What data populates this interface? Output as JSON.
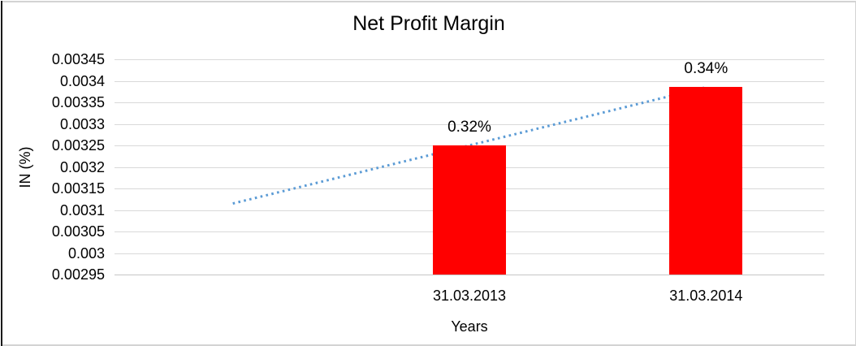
{
  "window": {
    "background": "#FFFFFF",
    "border_color": "#D3D3D3",
    "left_edge_color": "#1A1A1A"
  },
  "chart_data": {
    "type": "bar",
    "title": "Net Profit Margin",
    "categories": [
      "31.03.2013",
      "31.03.2014"
    ],
    "values": [
      0.00325,
      0.003385
    ],
    "data_labels": [
      "0.32%",
      "0.34%"
    ],
    "xlabel": "Years",
    "ylabel": "IN (%)",
    "ylim": [
      0.00295,
      0.00345
    ],
    "ytick_step": 5e-05,
    "yticks": [
      "0.00345",
      "0.0034",
      "0.00335",
      "0.0033",
      "0.00325",
      "0.0032",
      "0.00315",
      "0.0031",
      "0.00305",
      "0.003",
      "0.00295"
    ],
    "bar_color": "#FF0000",
    "grid": true,
    "legend": "none",
    "gridline_color": "#D9D9D9",
    "axis_line_color": "#C6C6C6",
    "text_color": "#000000",
    "leading_empty_categories": 1,
    "trendline": {
      "style": "dotted",
      "color": "#5B9BD5",
      "start_value": 0.003115,
      "end_value": 0.003385,
      "spans": "first-empty-category-to-last-category"
    }
  }
}
